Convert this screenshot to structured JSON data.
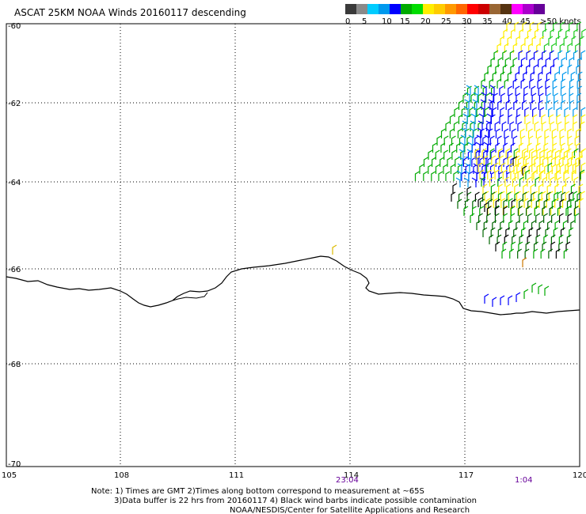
{
  "title": "ASCAT 25KM NOAA Winds 20160117 descending",
  "legend": {
    "labels": [
      "0",
      "5",
      "10",
      "15",
      "20",
      "25",
      "30",
      "35",
      "40",
      "45",
      ">50 knots"
    ],
    "colors": [
      "#3a3a3a",
      "#8a8a8a",
      "#00ccff",
      "#0099ee",
      "#0000ff",
      "#00aa00",
      "#00dd00",
      "#ffee00",
      "#ffcc00",
      "#ff9900",
      "#ff6600",
      "#ff0000",
      "#cc0000",
      "#996633",
      "#553311",
      "#ff00ff",
      "#aa00cc",
      "#660099"
    ]
  },
  "axes": {
    "x_ticks": [
      "105",
      "108",
      "111",
      "114",
      "117",
      "120"
    ],
    "y_ticks": [
      "-60",
      "-62",
      "-64",
      "-66",
      "-68",
      "-70"
    ]
  },
  "times": [
    "23:04",
    "1:04"
  ],
  "notes": {
    "line1": "Note: 1) Times are GMT 2)Times along bottom correspond to measurement at ~65S",
    "line2": "3)Data buffer is 22 hrs from 20160117 4) Black wind barbs indicate possible contamination",
    "line3": "NOAA/NESDIS/Center for Satellite Applications and Research"
  },
  "wind_colors": {
    "blue": "#0000ff",
    "lightblue": "#0099ee",
    "green": "#00aa00",
    "lightgreen": "#22cc22",
    "yellow": "#ffee00",
    "darkgreen": "#006600",
    "black": "#000000",
    "orange": "#cc7700"
  }
}
